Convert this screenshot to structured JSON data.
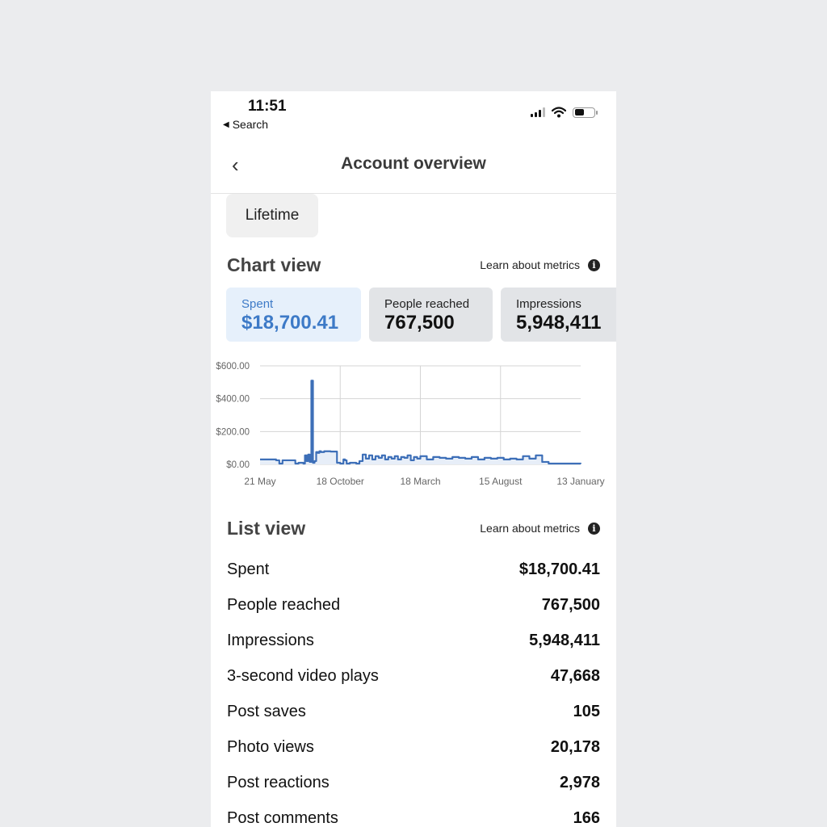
{
  "status": {
    "time": "11:51",
    "back_app": "Search"
  },
  "nav": {
    "title": "Account overview",
    "back_icon": "chevron-left-icon"
  },
  "filter": {
    "period": "Lifetime"
  },
  "chart_view": {
    "title": "Chart view",
    "learn": "Learn about metrics",
    "cards": [
      {
        "label": "Spent",
        "value": "$18,700.41"
      },
      {
        "label": "People reached",
        "value": "767,500"
      },
      {
        "label": "Impressions",
        "value": "5,948,411"
      }
    ]
  },
  "chart_data": {
    "type": "area",
    "title": "",
    "y_ticks": [
      "$600.00",
      "$400.00",
      "$200.00",
      "$0.00"
    ],
    "ylim": [
      0,
      600
    ],
    "x_ticks": [
      "21 May",
      "18 October",
      "18 March",
      "15 August",
      "13 January"
    ],
    "grid": true,
    "series": [
      {
        "color": "#3d6fb8",
        "x": [
          0,
          0.05,
          0.06,
          0.07,
          0.1,
          0.11,
          0.12,
          0.135,
          0.14,
          0.145,
          0.15,
          0.155,
          0.16,
          0.165,
          0.17,
          0.175,
          0.18,
          0.185,
          0.19,
          0.2,
          0.22,
          0.24,
          0.25,
          0.26,
          0.265,
          0.27,
          0.28,
          0.3,
          0.31,
          0.32,
          0.33,
          0.34,
          0.35,
          0.36,
          0.37,
          0.38,
          0.39,
          0.4,
          0.41,
          0.42,
          0.43,
          0.44,
          0.45,
          0.46,
          0.47,
          0.48,
          0.49,
          0.5,
          0.52,
          0.54,
          0.56,
          0.58,
          0.6,
          0.62,
          0.64,
          0.66,
          0.68,
          0.7,
          0.72,
          0.74,
          0.76,
          0.78,
          0.8,
          0.82,
          0.84,
          0.86,
          0.88,
          0.9,
          1.0
        ],
        "y": [
          30,
          25,
          5,
          25,
          25,
          5,
          10,
          5,
          55,
          20,
          60,
          15,
          510,
          10,
          20,
          75,
          70,
          80,
          75,
          80,
          78,
          10,
          5,
          30,
          25,
          5,
          10,
          5,
          20,
          60,
          35,
          55,
          30,
          50,
          40,
          55,
          30,
          45,
          35,
          50,
          30,
          45,
          40,
          55,
          25,
          45,
          35,
          50,
          30,
          45,
          40,
          35,
          45,
          40,
          35,
          45,
          30,
          40,
          35,
          40,
          30,
          35,
          30,
          50,
          35,
          55,
          15,
          5,
          3
        ]
      }
    ]
  },
  "list_view": {
    "title": "List view",
    "learn": "Learn about metrics",
    "rows": [
      {
        "label": "Spent",
        "value": "$18,700.41"
      },
      {
        "label": "People reached",
        "value": "767,500"
      },
      {
        "label": "Impressions",
        "value": "5,948,411"
      },
      {
        "label": "3-second video plays",
        "value": "47,668"
      },
      {
        "label": "Post saves",
        "value": "105"
      },
      {
        "label": "Photo views",
        "value": "20,178"
      },
      {
        "label": "Post reactions",
        "value": "2,978"
      },
      {
        "label": "Post comments",
        "value": "166"
      }
    ]
  }
}
